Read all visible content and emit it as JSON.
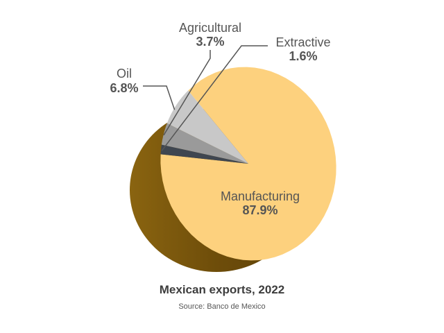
{
  "chart_data": {
    "type": "pie",
    "title": "Mexican exports, 2022",
    "source": "Source: Banco de Mexico",
    "slices": [
      {
        "label": "Manufacturing",
        "value": 87.9,
        "value_label": "87.9%",
        "color": "#fdd17e"
      },
      {
        "label": "Oil",
        "value": 6.8,
        "value_label": "6.8%",
        "color": "#c8c8c8"
      },
      {
        "label": "Agricultural",
        "value": 3.7,
        "value_label": "3.7%",
        "color": "#9a9a9a"
      },
      {
        "label": "Extractive",
        "value": 1.6,
        "value_label": "1.6%",
        "color": "#3f4650"
      }
    ],
    "style": "3d"
  }
}
